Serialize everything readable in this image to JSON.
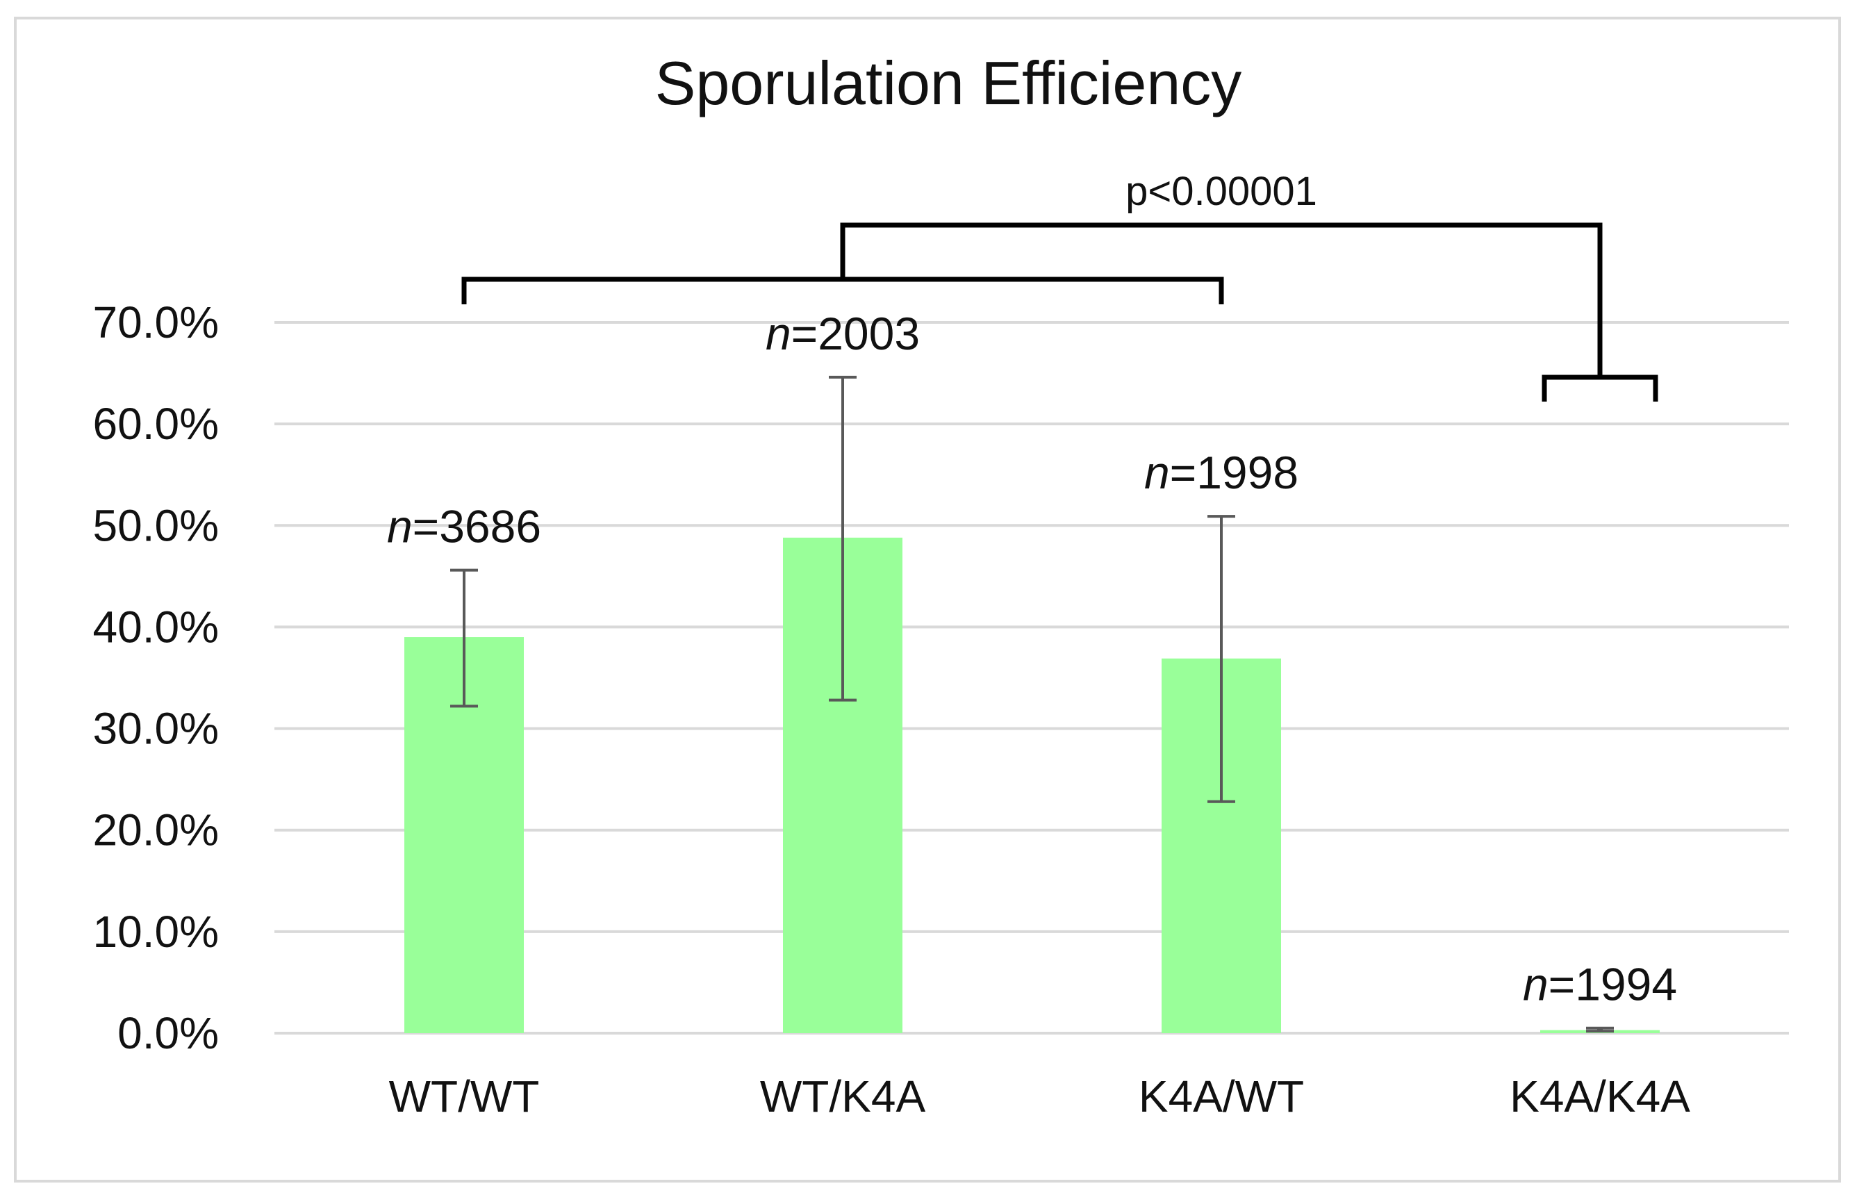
{
  "chart_data": {
    "type": "bar",
    "title": "Sporulation Efficiency",
    "xlabel": "",
    "ylabel": "",
    "categories": [
      "WT/WT",
      "WT/K4A",
      "K4A/WT",
      "K4A/K4A"
    ],
    "values": [
      39.0,
      48.8,
      36.9,
      0.3
    ],
    "error_low": [
      32.2,
      32.8,
      22.8,
      0.2
    ],
    "error_high": [
      45.6,
      64.6,
      50.9,
      0.5
    ],
    "n_labels": [
      {
        "italic": "n",
        "rest": "=3686"
      },
      {
        "italic": "n",
        "rest": "=2003"
      },
      {
        "italic": "n",
        "rest": "=1998"
      },
      {
        "italic": "n",
        "rest": "=1994"
      }
    ],
    "ylim": [
      0,
      70
    ],
    "yticks": [
      0,
      10,
      20,
      30,
      40,
      50,
      60,
      70
    ],
    "ytick_labels": [
      "0.0%",
      "10.0%",
      "20.0%",
      "30.0%",
      "40.0%",
      "50.0%",
      "60.0%",
      "70.0%"
    ],
    "grid": true,
    "legend": "none",
    "significance": {
      "label": "p<0.00001",
      "group_a": [
        "WT/WT",
        "WT/K4A",
        "K4A/WT"
      ],
      "group_b": [
        "K4A/K4A"
      ]
    },
    "colors": {
      "bar": "#99ff99",
      "error": "#595959",
      "grid": "#d9d9d9",
      "bracket": "#000000"
    }
  }
}
